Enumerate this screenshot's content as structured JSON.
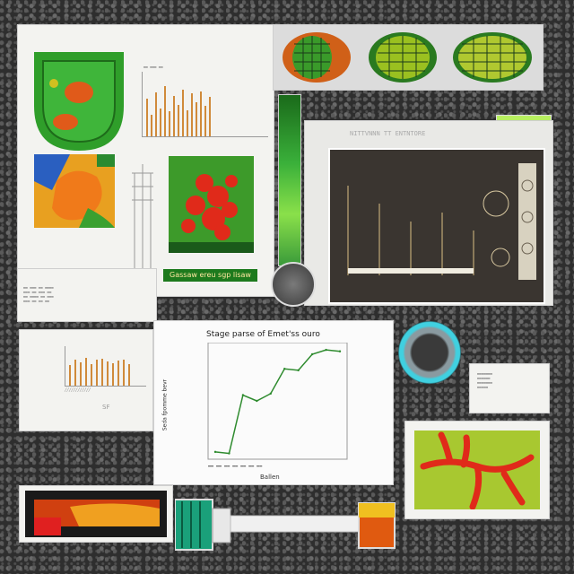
{
  "colors": {
    "background": "#2e2e2e",
    "panel": "#f3f3f0",
    "green_accent": "#1d7a1d",
    "orange_bars": "#d08a3a",
    "line_green": "#2e8b2e",
    "red_branch": "#e02a1a",
    "teal_ring": "#40d0e0"
  },
  "labels": {
    "green_caption": "Gassaw ereu sgp lisaw",
    "main_chart_title": "Stage parse of Emet'ss ouro",
    "main_chart_ylabel": "Seda fpomme bevr",
    "main_chart_xlabel": "Ballen",
    "small_chart_xlabel": "SF",
    "dark_panel_header": "NITTVNNN TT ENTNTORE"
  },
  "chart_data": [
    {
      "type": "line",
      "title": "Stage parse of Emet'ss ouro",
      "xlabel": "Ballen",
      "ylabel": "Seda fpomme bevr",
      "x": [
        1,
        2,
        3,
        4,
        5,
        6,
        7,
        8,
        9,
        10
      ],
      "y": [
        5,
        4,
        44,
        40,
        45,
        62,
        61,
        72,
        75,
        74
      ],
      "ylim": [
        0,
        80
      ]
    },
    {
      "type": "bar",
      "values": [
        60,
        35,
        70,
        45,
        80,
        40,
        65,
        50,
        75,
        42,
        68,
        55,
        72,
        48,
        63
      ],
      "ylim": [
        0,
        100
      ]
    },
    {
      "type": "bar",
      "values": [
        55,
        70,
        62,
        75,
        58,
        68,
        72,
        64,
        60,
        66,
        70,
        58
      ],
      "xlabel": "SF",
      "ylim": [
        0,
        100
      ]
    }
  ]
}
